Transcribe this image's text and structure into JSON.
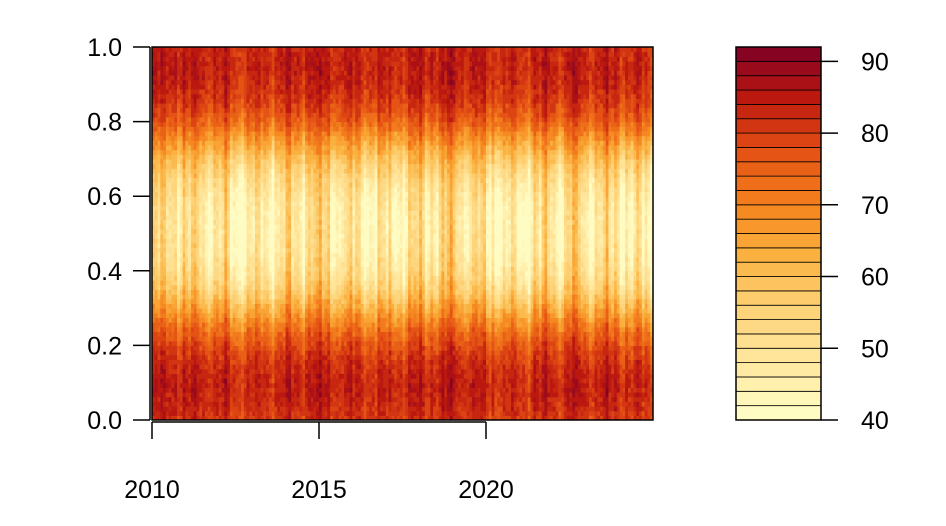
{
  "chart_data": {
    "type": "heatmap",
    "title": "",
    "xlabel": "",
    "ylabel": "",
    "x_range": [
      2010,
      2025
    ],
    "y_range": [
      0.0,
      1.0
    ],
    "x_ticks": [
      {
        "value": 2010,
        "label": "2010"
      },
      {
        "value": 2015,
        "label": "2015"
      },
      {
        "value": 2020,
        "label": "2020"
      }
    ],
    "y_ticks": [
      {
        "value": 0.0,
        "label": "0.0"
      },
      {
        "value": 0.2,
        "label": "0.2"
      },
      {
        "value": 0.4,
        "label": "0.4"
      },
      {
        "value": 0.6,
        "label": "0.6"
      },
      {
        "value": 0.8,
        "label": "0.8"
      },
      {
        "value": 1.0,
        "label": "1.0"
      }
    ],
    "colorbar": {
      "range": [
        40,
        92
      ],
      "levels": [
        40,
        42,
        44,
        46,
        48,
        50,
        52,
        54,
        56,
        58,
        60,
        62,
        64,
        66,
        68,
        70,
        72,
        74,
        76,
        78,
        80,
        82,
        84,
        86,
        88,
        90,
        92
      ],
      "ticks": [
        {
          "value": 40,
          "label": "40"
        },
        {
          "value": 50,
          "label": "50"
        },
        {
          "value": 60,
          "label": "60"
        },
        {
          "value": 70,
          "label": "70"
        },
        {
          "value": 80,
          "label": "80"
        },
        {
          "value": 90,
          "label": "90"
        }
      ],
      "palette": "YlOrRd",
      "color_low": "#FFFFC8",
      "color_high": "#7D0025"
    },
    "pattern": {
      "rows_y": [
        0.0,
        0.05,
        0.1,
        0.15,
        0.2,
        0.25,
        0.3,
        0.35,
        0.4,
        0.45,
        0.5,
        0.55,
        0.6,
        0.65,
        0.7,
        0.75,
        0.8,
        0.85,
        0.9,
        0.95,
        1.0
      ],
      "row_mean_values": [
        81,
        83,
        84,
        82,
        78,
        72,
        64,
        56,
        51,
        48,
        47,
        47,
        49,
        53,
        59,
        67,
        75,
        80,
        83,
        84,
        83
      ]
    }
  }
}
